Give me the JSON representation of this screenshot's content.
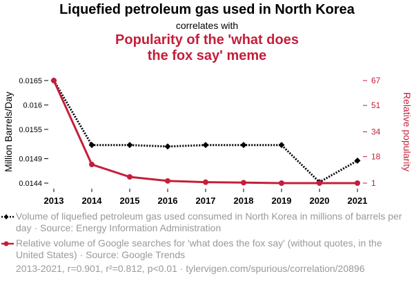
{
  "header": {
    "title_a": "Liquefied petroleum gas used in North Korea",
    "connector": "correlates with",
    "title_b": "Popularity of the 'what does the fox say' meme"
  },
  "chart_data": {
    "type": "line",
    "x": [
      "2013",
      "2014",
      "2015",
      "2016",
      "2017",
      "2018",
      "2019",
      "2020",
      "2021"
    ],
    "series": [
      {
        "name": "Volume of liquefied petroleum gas used consumed in North Korea in millions of barrels per day · Source: Energy Information Administration",
        "axis": "left",
        "color": "#000000",
        "style": "dotted",
        "marker": "diamond",
        "values": [
          0.0165,
          0.01518,
          0.01518,
          0.01515,
          0.01518,
          0.01518,
          0.01518,
          0.01442,
          0.01486
        ]
      },
      {
        "name": "Relative volume of Google searches for 'what does the fox say' (without quotes, in the United States) · Source: Google Trends",
        "axis": "right",
        "color": "#c41e3a",
        "style": "solid",
        "marker": "circle",
        "values": [
          67,
          13,
          5,
          2.4,
          1.6,
          1.3,
          1,
          1,
          1
        ]
      }
    ],
    "ylabel_left": "Million Barrels/Day",
    "ylabel_right": "Relative popularity",
    "yticks_left": [
      "0.0165",
      "0.016",
      "0.0155",
      "0.0149",
      "0.0144"
    ],
    "yticks_right": [
      "67",
      "51",
      "34",
      "18",
      "1"
    ],
    "ylim_left": [
      0.0144,
      0.0165
    ],
    "ylim_right": [
      1,
      67
    ],
    "grid": false
  },
  "legend": {
    "item1": "Volume of liquefied petroleum gas used consumed in North Korea in millions of barrels per day · Source: Energy Information Administration",
    "item2": "Relative volume of Google searches for 'what does the fox say' (without quotes, in the United States) · Source: Google Trends"
  },
  "footer": {
    "text": "2013-2021, r=0.901, r²=0.812, p<0.01 · tylervigen.com/spurious/correlation/20896"
  }
}
